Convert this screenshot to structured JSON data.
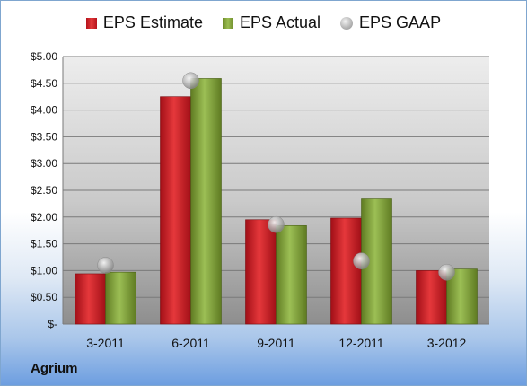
{
  "company": "Agrium",
  "legend": {
    "estimate": "EPS Estimate",
    "actual": "EPS Actual",
    "gaap": "EPS GAAP"
  },
  "colors": {
    "estimate": "#c0161f",
    "actual": "#7e9f36",
    "gaap": "#b0b0b0",
    "plot_bg_top": "#ececec",
    "plot_bg_bottom": "#8f8f8f"
  },
  "chart_data": {
    "type": "bar",
    "categories": [
      "3-2011",
      "6-2011",
      "9-2011",
      "12-2011",
      "3-2012"
    ],
    "series": [
      {
        "name": "EPS Estimate",
        "values": [
          0.94,
          4.25,
          1.95,
          1.98,
          1.0
        ]
      },
      {
        "name": "EPS Actual",
        "values": [
          0.97,
          4.59,
          1.84,
          2.34,
          1.03
        ]
      },
      {
        "name": "EPS GAAP",
        "type": "scatter",
        "values": [
          1.1,
          4.55,
          1.86,
          1.18,
          0.97
        ]
      }
    ],
    "y_tick_labels": [
      "$-",
      "$0.50",
      "$1.00",
      "$1.50",
      "$2.00",
      "$2.50",
      "$3.00",
      "$3.50",
      "$4.00",
      "$4.50",
      "$5.00"
    ],
    "ylim": [
      0,
      5
    ],
    "y_step": 0.5,
    "grid": true,
    "legend_position": "top-center"
  }
}
